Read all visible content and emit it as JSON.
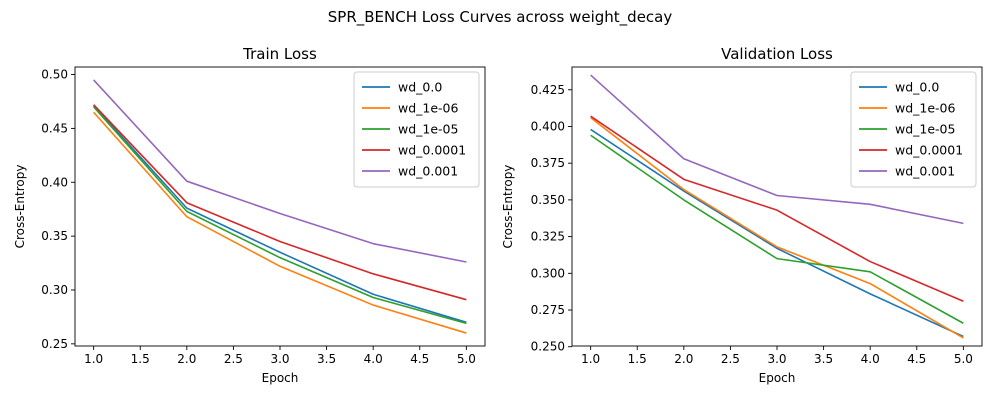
{
  "figure": {
    "suptitle": "SPR_BENCH Loss Curves across weight_decay"
  },
  "chart_data": [
    {
      "type": "line",
      "title": "Train Loss",
      "xlabel": "Epoch",
      "ylabel": "Cross-Entropy",
      "x": [
        1,
        2,
        3,
        4,
        5
      ],
      "xlim": [
        0.8,
        5.2
      ],
      "ylim": [
        0.248,
        0.507
      ],
      "xticks": [
        "1.0",
        "1.5",
        "2.0",
        "2.5",
        "3.0",
        "3.5",
        "4.0",
        "4.5",
        "5.0"
      ],
      "yticks": [
        "0.25",
        "0.30",
        "0.35",
        "0.40",
        "0.45",
        "0.50"
      ],
      "grid": false,
      "legend": "top-right",
      "series": [
        {
          "name": "wd_0.0",
          "color": "#1f77b4",
          "values": [
            0.471,
            0.376,
            0.335,
            0.296,
            0.27
          ]
        },
        {
          "name": "wd_1e-06",
          "color": "#ff7f0e",
          "values": [
            0.465,
            0.368,
            0.322,
            0.286,
            0.26
          ]
        },
        {
          "name": "wd_1e-05",
          "color": "#2ca02c",
          "values": [
            0.47,
            0.373,
            0.33,
            0.293,
            0.269
          ]
        },
        {
          "name": "wd_0.0001",
          "color": "#d62728",
          "values": [
            0.472,
            0.381,
            0.345,
            0.315,
            0.291
          ]
        },
        {
          "name": "wd_0.001",
          "color": "#9467bd",
          "values": [
            0.495,
            0.401,
            0.371,
            0.343,
            0.326
          ]
        }
      ]
    },
    {
      "type": "line",
      "title": "Validation Loss",
      "xlabel": "Epoch",
      "ylabel": "Cross-Entropy",
      "x": [
        1,
        2,
        3,
        4,
        5
      ],
      "xlim": [
        0.8,
        5.2
      ],
      "ylim": [
        0.2505,
        0.4405
      ],
      "xticks": [
        "1.0",
        "1.5",
        "2.0",
        "2.5",
        "3.0",
        "3.5",
        "4.0",
        "4.5",
        "5.0"
      ],
      "yticks": [
        "0.250",
        "0.275",
        "0.300",
        "0.325",
        "0.350",
        "0.375",
        "0.400",
        "0.425"
      ],
      "grid": false,
      "legend": "top-right",
      "series": [
        {
          "name": "wd_0.0",
          "color": "#1f77b4",
          "values": [
            0.398,
            0.356,
            0.317,
            0.286,
            0.257
          ]
        },
        {
          "name": "wd_1e-06",
          "color": "#ff7f0e",
          "values": [
            0.406,
            0.357,
            0.318,
            0.293,
            0.256
          ]
        },
        {
          "name": "wd_1e-05",
          "color": "#2ca02c",
          "values": [
            0.394,
            0.35,
            0.31,
            0.301,
            0.266
          ]
        },
        {
          "name": "wd_0.0001",
          "color": "#d62728",
          "values": [
            0.407,
            0.364,
            0.343,
            0.308,
            0.281
          ]
        },
        {
          "name": "wd_0.001",
          "color": "#9467bd",
          "values": [
            0.435,
            0.378,
            0.353,
            0.347,
            0.334
          ]
        }
      ]
    }
  ]
}
